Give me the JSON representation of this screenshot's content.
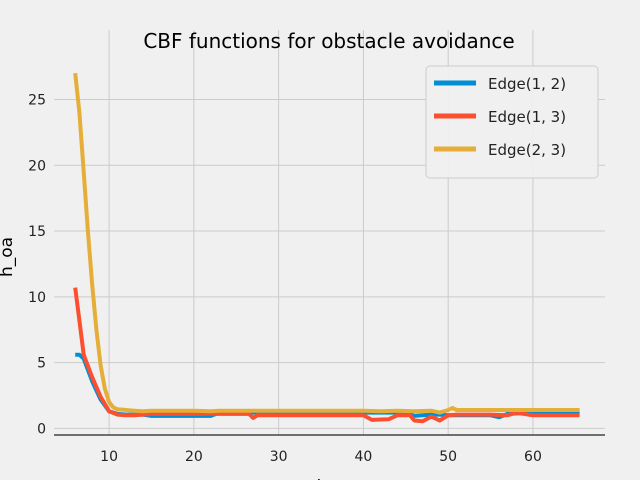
{
  "chart_data": {
    "type": "line",
    "title": "CBF functions for obstacle avoidance",
    "xlabel": "time",
    "ylabel": "h_oa",
    "xlim": [
      3.5,
      68.5
    ],
    "ylim": [
      -0.5,
      28
    ],
    "xticks": [
      10,
      20,
      30,
      40,
      50,
      60
    ],
    "yticks": [
      0,
      5,
      10,
      15,
      20,
      25
    ],
    "grid": true,
    "legend_position": "top-right",
    "series": [
      {
        "name": "Edge(1, 2)",
        "color": "#008fd5",
        "x": [
          6,
          6.5,
          7,
          8,
          9,
          10,
          11,
          12,
          13,
          14,
          15,
          20,
          22,
          23,
          27,
          30,
          40,
          44,
          45,
          46,
          47,
          48,
          49,
          50,
          55,
          56,
          57,
          60,
          65.5
        ],
        "y": [
          5.6,
          5.6,
          5.3,
          3.6,
          2.2,
          1.3,
          1.1,
          1.05,
          1.05,
          1.05,
          0.95,
          0.95,
          0.95,
          1.2,
          1.2,
          1.2,
          1.2,
          1.2,
          1.25,
          0.95,
          1.0,
          1.05,
          1.05,
          1.0,
          1.0,
          0.85,
          1.1,
          1.2,
          1.2
        ]
      },
      {
        "name": "Edge(1, 3)",
        "color": "#fc4f30",
        "x": [
          6,
          6.5,
          7,
          8,
          9,
          10,
          11,
          12,
          13,
          14,
          15,
          20,
          26.5,
          27,
          27.5,
          30,
          40,
          41,
          43,
          44,
          45,
          45.5,
          46,
          47,
          48,
          48.5,
          49,
          50,
          51,
          55,
          57,
          58,
          60,
          65.5
        ],
        "y": [
          10.7,
          8.2,
          5.6,
          3.9,
          2.4,
          1.3,
          1.05,
          1.0,
          1.0,
          1.05,
          1.1,
          1.1,
          1.1,
          0.8,
          1.0,
          1.0,
          1.0,
          0.65,
          0.7,
          1.0,
          1.0,
          1.0,
          0.6,
          0.55,
          0.9,
          0.75,
          0.6,
          1.0,
          1.05,
          1.05,
          1.0,
          1.2,
          1.0,
          1.0
        ]
      },
      {
        "name": "Edge(2, 3)",
        "color": "#e5ae38",
        "x": [
          6,
          6.5,
          7,
          7.5,
          8,
          8.5,
          9,
          9.5,
          10,
          10.5,
          11,
          12,
          13,
          14,
          15,
          20,
          22,
          23,
          27,
          30,
          40,
          42,
          44,
          46,
          48,
          49,
          50,
          50.5,
          51,
          55,
          60,
          65.5
        ],
        "y": [
          27,
          24,
          19.5,
          15,
          11,
          7.5,
          4.8,
          3.0,
          2.0,
          1.6,
          1.45,
          1.4,
          1.35,
          1.3,
          1.35,
          1.35,
          1.3,
          1.35,
          1.35,
          1.35,
          1.35,
          1.3,
          1.35,
          1.3,
          1.35,
          1.2,
          1.4,
          1.55,
          1.4,
          1.4,
          1.4,
          1.4
        ]
      }
    ]
  }
}
